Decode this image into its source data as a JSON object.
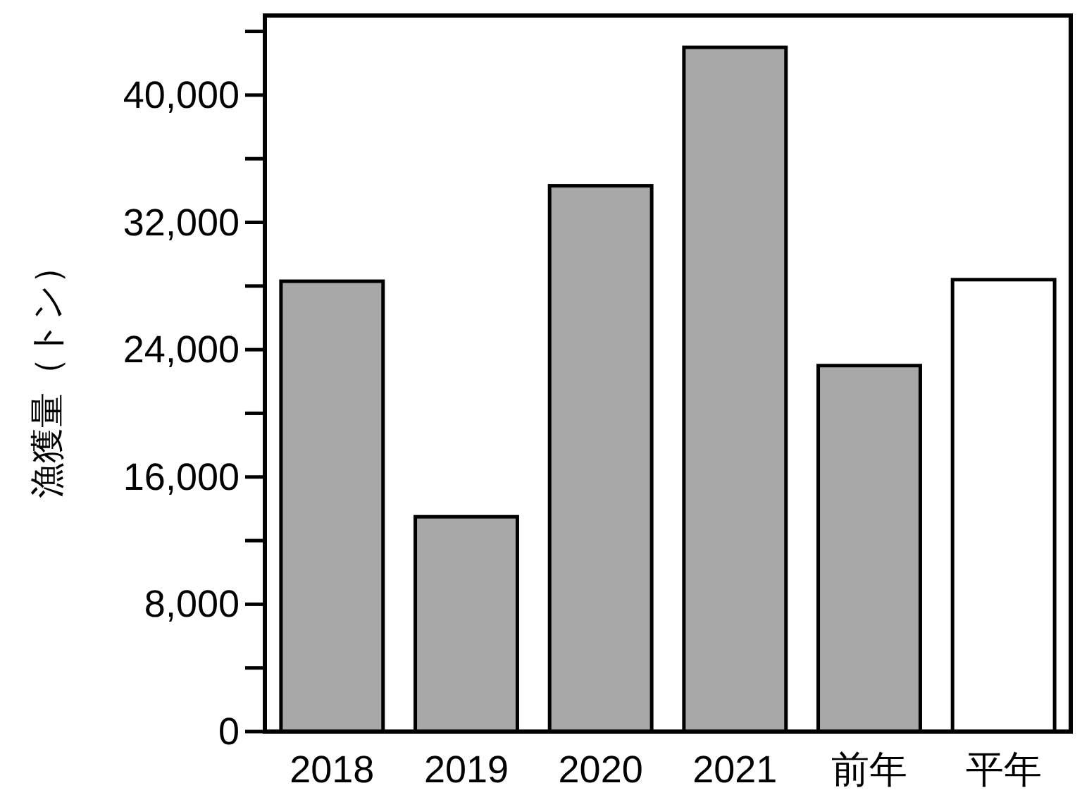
{
  "chart_data": {
    "type": "bar",
    "ylabel": "漁獲量（トン）",
    "categories": [
      "2018",
      "2019",
      "2020",
      "2021",
      "前年",
      "平年"
    ],
    "values": [
      28300,
      13500,
      34300,
      43000,
      23000,
      28400
    ],
    "colors": [
      "#a8a8a8",
      "#a8a8a8",
      "#a8a8a8",
      "#a8a8a8",
      "#a8a8a8",
      "#ffffff"
    ],
    "ylim": [
      0,
      45000
    ],
    "yticks": [
      0,
      {
        "value": 4000,
        "label": null
      },
      {
        "value": 8000,
        "label": "8,000"
      },
      {
        "value": 12000,
        "label": null
      },
      {
        "value": 16000,
        "label": "16,000"
      },
      {
        "value": 20000,
        "label": null
      },
      {
        "value": 24000,
        "label": "24,000"
      },
      {
        "value": 28000,
        "label": null
      },
      {
        "value": 32000,
        "label": "32,000"
      },
      {
        "value": 36000,
        "label": null
      },
      {
        "value": 40000,
        "label": "40,000"
      },
      {
        "value": 44000,
        "label": null
      }
    ],
    "data_labels": false
  }
}
